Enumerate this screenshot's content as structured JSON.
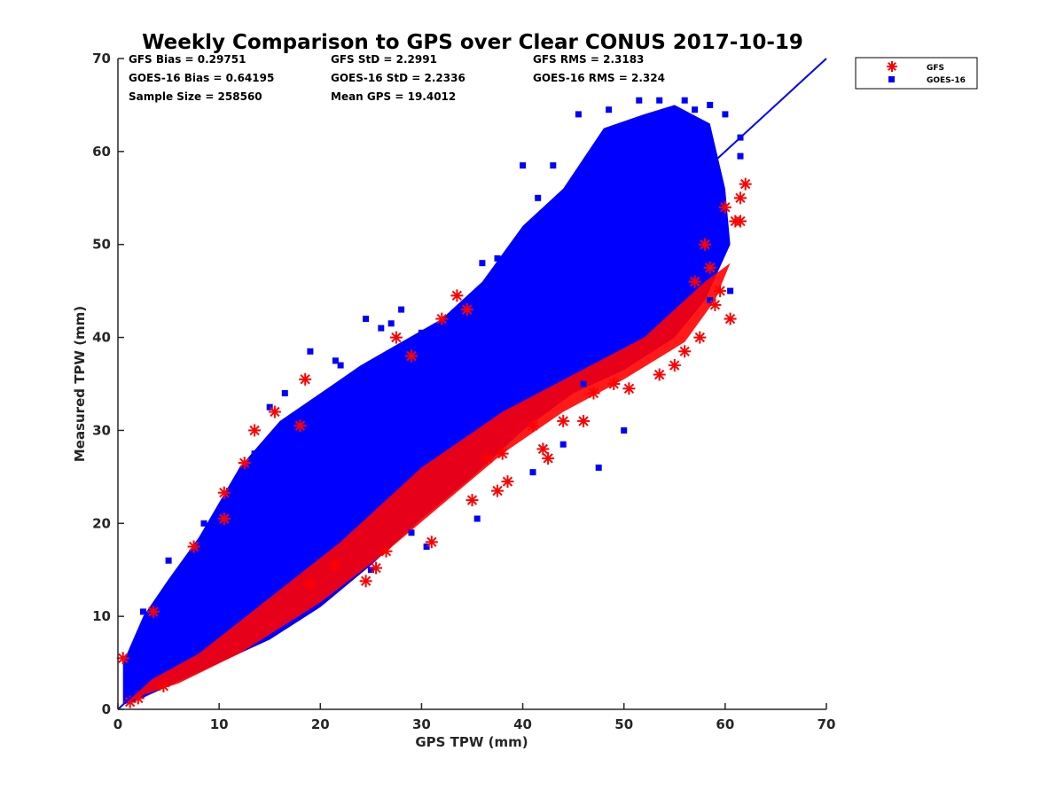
{
  "chart_data": {
    "type": "scatter",
    "title": "Weekly Comparison to GPS over Clear CONUS 2017-10-19",
    "xlabel": "GPS TPW (mm)",
    "ylabel": "Measured TPW (mm)",
    "xlim": [
      0,
      70
    ],
    "ylim": [
      0,
      70
    ],
    "xticks": [
      0,
      10,
      20,
      30,
      40,
      50,
      60,
      70
    ],
    "yticks": [
      0,
      10,
      20,
      30,
      40,
      50,
      60,
      70
    ],
    "grid": false,
    "legend_position": "outside-top-right",
    "stats": [
      [
        "GFS Bias = 0.29751",
        "GFS StD = 2.2991",
        "GFS RMS = 2.3183"
      ],
      [
        "GOES-16 Bias = 0.64195",
        "GOES-16 StD = 2.2336",
        "GOES-16 RMS = 2.324"
      ],
      [
        "Sample Size = 258560",
        "Mean GPS = 19.4012",
        ""
      ]
    ],
    "reference_line": {
      "name": "1:1 line",
      "from": [
        0,
        0
      ],
      "to": [
        70,
        70
      ],
      "color": "#0000ff"
    },
    "series": [
      {
        "name": "GFS",
        "marker": "asterisk",
        "color": "#ff0000",
        "points": [
          [
            0.5,
            5.5
          ],
          [
            1.2,
            0.8
          ],
          [
            2.0,
            1.2
          ],
          [
            3.5,
            10.5
          ],
          [
            4.5,
            2.5
          ],
          [
            7.5,
            17.5
          ],
          [
            10.5,
            23.3
          ],
          [
            10.5,
            20.5
          ],
          [
            12.5,
            26.5
          ],
          [
            13.5,
            30.0
          ],
          [
            15.5,
            32.0
          ],
          [
            18.0,
            30.5
          ],
          [
            18.5,
            35.5
          ],
          [
            19.0,
            13.5
          ],
          [
            21.5,
            15.5
          ],
          [
            24.5,
            13.8
          ],
          [
            25.5,
            15.2
          ],
          [
            26.5,
            17.0
          ],
          [
            27.5,
            40.0
          ],
          [
            29.0,
            38.0
          ],
          [
            31.0,
            18.0
          ],
          [
            32.0,
            42.0
          ],
          [
            33.5,
            44.5
          ],
          [
            34.5,
            43.0
          ],
          [
            35.0,
            22.5
          ],
          [
            36.5,
            27.0
          ],
          [
            38.0,
            27.5
          ],
          [
            38.5,
            24.5
          ],
          [
            37.5,
            23.5
          ],
          [
            41.0,
            30.5
          ],
          [
            42.0,
            28.0
          ],
          [
            42.5,
            27.0
          ],
          [
            44.0,
            31.0
          ],
          [
            46.0,
            31.0
          ],
          [
            47.0,
            34.0
          ],
          [
            49.0,
            35.0
          ],
          [
            50.5,
            34.5
          ],
          [
            53.5,
            36.0
          ],
          [
            55.0,
            37.0
          ],
          [
            56.0,
            38.5
          ],
          [
            57.5,
            40.0
          ],
          [
            59.0,
            43.5
          ],
          [
            59.5,
            45.0
          ],
          [
            60.5,
            42.0
          ],
          [
            58.5,
            47.5
          ],
          [
            61.0,
            52.5
          ],
          [
            61.5,
            55.0
          ],
          [
            62.0,
            56.5
          ],
          [
            61.5,
            52.5
          ],
          [
            60.0,
            54.0
          ],
          [
            58.0,
            50.0
          ],
          [
            57.0,
            46.0
          ]
        ]
      },
      {
        "name": "GOES-16",
        "marker": "square",
        "color": "#0000ff",
        "points": [
          [
            2.5,
            10.5
          ],
          [
            5.0,
            16.0
          ],
          [
            8.5,
            20.0
          ],
          [
            11.0,
            23.5
          ],
          [
            13.5,
            27.5
          ],
          [
            15.0,
            32.5
          ],
          [
            16.5,
            34.0
          ],
          [
            19.0,
            38.5
          ],
          [
            21.5,
            37.5
          ],
          [
            22.0,
            37.0
          ],
          [
            24.5,
            42.0
          ],
          [
            26.0,
            41.0
          ],
          [
            27.0,
            41.5
          ],
          [
            28.0,
            43.0
          ],
          [
            30.0,
            40.5
          ],
          [
            34.0,
            43.0
          ],
          [
            36.0,
            48.0
          ],
          [
            37.5,
            48.5
          ],
          [
            37.0,
            46.5
          ],
          [
            40.0,
            58.5
          ],
          [
            41.5,
            55.0
          ],
          [
            43.0,
            58.5
          ],
          [
            44.5,
            56.0
          ],
          [
            45.5,
            64.0
          ],
          [
            47.5,
            60.0
          ],
          [
            48.5,
            64.5
          ],
          [
            50.0,
            62.0
          ],
          [
            50.5,
            61.5
          ],
          [
            51.5,
            65.5
          ],
          [
            52.0,
            62.5
          ],
          [
            53.5,
            65.5
          ],
          [
            56.0,
            65.5
          ],
          [
            57.0,
            64.5
          ],
          [
            58.5,
            65.0
          ],
          [
            60.0,
            64.0
          ],
          [
            61.5,
            61.5
          ],
          [
            61.5,
            59.5
          ],
          [
            60.5,
            45.0
          ],
          [
            58.5,
            44.0
          ],
          [
            30.5,
            17.5
          ],
          [
            35.5,
            20.5
          ],
          [
            41.0,
            25.5
          ],
          [
            44.0,
            28.5
          ],
          [
            29.0,
            19.0
          ],
          [
            25.0,
            15.0
          ],
          [
            47.5,
            26.0
          ],
          [
            50.0,
            30.0
          ],
          [
            46.0,
            35.0
          ]
        ]
      }
    ],
    "cloud_polygon": [
      [
        0.5,
        0.5
      ],
      [
        2.0,
        1.0
      ],
      [
        6.0,
        3.0
      ],
      [
        10.0,
        5.0
      ],
      [
        15.0,
        7.5
      ],
      [
        20.0,
        11.0
      ],
      [
        25.0,
        15.5
      ],
      [
        30.0,
        20.5
      ],
      [
        35.0,
        25.0
      ],
      [
        40.0,
        30.0
      ],
      [
        45.0,
        34.0
      ],
      [
        50.0,
        36.5
      ],
      [
        55.0,
        40.0
      ],
      [
        58.0,
        44.0
      ],
      [
        60.5,
        50.0
      ],
      [
        60.0,
        56.0
      ],
      [
        58.5,
        63.0
      ],
      [
        55.0,
        65.0
      ],
      [
        52.0,
        64.0
      ],
      [
        48.0,
        62.5
      ],
      [
        44.0,
        56.0
      ],
      [
        40.0,
        52.0
      ],
      [
        36.0,
        46.0
      ],
      [
        32.0,
        42.0
      ],
      [
        28.0,
        39.5
      ],
      [
        24.0,
        37.0
      ],
      [
        20.0,
        34.0
      ],
      [
        16.0,
        31.0
      ],
      [
        12.0,
        26.0
      ],
      [
        8.0,
        18.5
      ],
      [
        5.0,
        14.0
      ],
      [
        2.5,
        10.0
      ],
      [
        0.5,
        5.0
      ]
    ],
    "cloud_edge_polygon": [
      [
        1.0,
        1.0
      ],
      [
        6.0,
        2.8
      ],
      [
        12.0,
        6.0
      ],
      [
        20.0,
        11.5
      ],
      [
        26.0,
        16.5
      ],
      [
        32.0,
        22.0
      ],
      [
        38.0,
        27.5
      ],
      [
        44.0,
        32.0
      ],
      [
        50.0,
        35.5
      ],
      [
        56.0,
        39.5
      ],
      [
        59.0,
        44.0
      ],
      [
        60.5,
        48.0
      ],
      [
        58.0,
        46.0
      ],
      [
        52.0,
        40.0
      ],
      [
        45.0,
        36.0
      ],
      [
        38.0,
        32.0
      ],
      [
        30.0,
        26.0
      ],
      [
        22.0,
        18.0
      ],
      [
        15.0,
        12.0
      ],
      [
        8.0,
        6.0
      ],
      [
        3.0,
        3.0
      ]
    ]
  },
  "legend": {
    "entries": [
      {
        "label": "GFS",
        "marker": "asterisk",
        "color": "#ff0000"
      },
      {
        "label": "GOES-16",
        "marker": "square",
        "color": "#0000ff"
      }
    ]
  }
}
